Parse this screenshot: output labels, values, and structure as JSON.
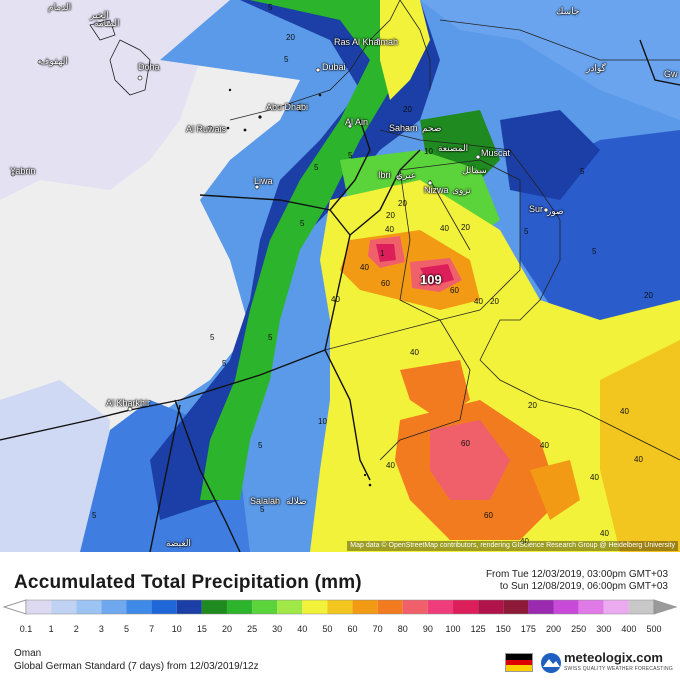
{
  "map": {
    "attribution": "Map data © OpenStreetMap contributors, rendering GIScience Research Group @ Heidelberg University",
    "max_value": "109",
    "cities": [
      {
        "name": "الدمام"
      },
      {
        "name": "الخبر"
      },
      {
        "name": "المنامة"
      },
      {
        "name": "Doha"
      },
      {
        "name": "الهفوف"
      },
      {
        "name": "Ras Al Khaimah"
      },
      {
        "name": "Dubai"
      },
      {
        "name": "Abu Dhabi"
      },
      {
        "name": "Al Ruwais"
      },
      {
        "name": "Al Ain"
      },
      {
        "name": "Saham"
      },
      {
        "name": "صحم"
      },
      {
        "name": "المصنعة"
      },
      {
        "name": "Muscat"
      },
      {
        "name": "Ibri"
      },
      {
        "name": "عبري"
      },
      {
        "name": "سمائل"
      },
      {
        "name": "Nizwa"
      },
      {
        "name": "نزوى"
      },
      {
        "name": "Sur"
      },
      {
        "name": "صور"
      },
      {
        "name": "Liwa"
      },
      {
        "name": "Yabrin"
      },
      {
        "name": "Al Kharkhir"
      },
      {
        "name": "Salalah"
      },
      {
        "name": "صلالة"
      },
      {
        "name": "الغيضة"
      },
      {
        "name": "جاسك"
      },
      {
        "name": "گوادر"
      },
      {
        "name": "Gw"
      }
    ],
    "contour_values": [
      "5",
      "20",
      "5",
      "5",
      "20",
      "10",
      "20",
      "5",
      "20",
      "40",
      "60",
      "40",
      "40",
      "60",
      "20",
      "40",
      "20",
      "40",
      "60",
      "40",
      "40",
      "40",
      "20",
      "40",
      "40",
      "60",
      "40",
      "40",
      "5",
      "5",
      "5",
      "5",
      "5",
      "10",
      "5",
      "5",
      "1",
      "40",
      "20",
      "5",
      "5",
      "5"
    ]
  },
  "title": "Accumulated Total Precipitation (mm)",
  "period": {
    "from": "From Tue 12/03/2019, 03:00pm GMT+03",
    "to": "to Sun 12/08/2019, 06:00pm GMT+03"
  },
  "legend": {
    "unit": "mm",
    "ticks": [
      "0.1",
      "1",
      "2",
      "3",
      "5",
      "7",
      "10",
      "15",
      "20",
      "25",
      "30",
      "40",
      "50",
      "60",
      "70",
      "80",
      "90",
      "100",
      "125",
      "150",
      "175",
      "200",
      "250",
      "300",
      "400",
      "500"
    ],
    "colors": [
      "#dcd9f0",
      "#bfd2f2",
      "#9cc4f2",
      "#6fa8ee",
      "#3f8ae6",
      "#1f66d8",
      "#1b3fa6",
      "#1f8a1f",
      "#2cb52c",
      "#5bd33a",
      "#9fe845",
      "#f2f23a",
      "#f2c61f",
      "#f29a14",
      "#f27a1f",
      "#f0606a",
      "#ee3d7a",
      "#dc1f5a",
      "#b0124a",
      "#8e1a3a",
      "#9a2ab0",
      "#c84ad8",
      "#e07ae6",
      "#ecaaf0",
      "#c8c8c8"
    ]
  },
  "region": "Oman",
  "model_info": "Global German Standard (7 days)  from  12/03/2019/12z",
  "brand": {
    "name": "meteologix.com",
    "tagline": "SWISS QUALITY WEATHER FORECASTING"
  },
  "flag_colors": [
    "#000000",
    "#dd0000",
    "#ffce00"
  ]
}
